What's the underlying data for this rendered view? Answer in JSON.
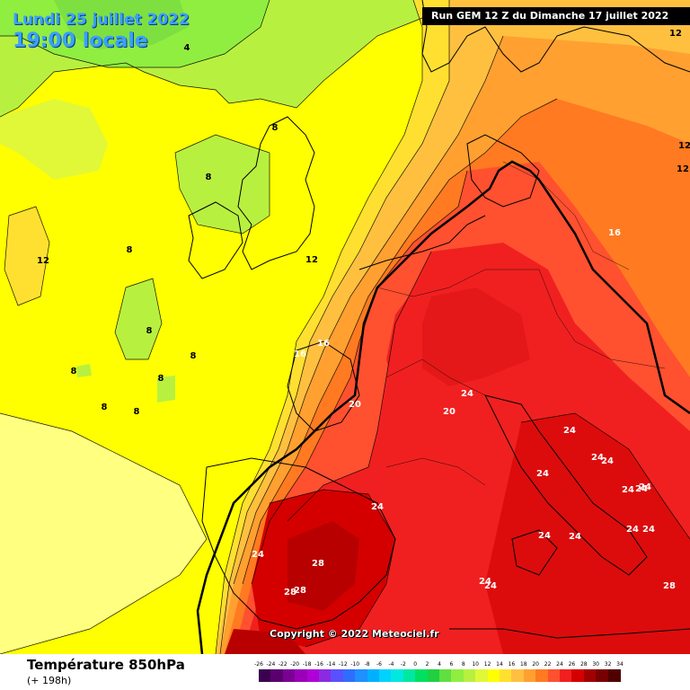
{
  "header": {
    "date": "Lundi 25 juillet 2022",
    "time": "19:00 locale",
    "run": "Run GEM 12 Z du Dimanche 17 juillet 2022"
  },
  "map": {
    "copyright": "Copyright © 2022 Meteociel.fr",
    "contour_labels": [
      "4",
      "12",
      "12",
      "12",
      "8",
      "8",
      "8",
      "8",
      "8",
      "8",
      "8",
      "8",
      "8",
      "12",
      "12",
      "16",
      "16",
      "16",
      "20",
      "20",
      "24",
      "24",
      "24",
      "24",
      "24",
      "24",
      "24",
      "24",
      "24",
      "24",
      "24",
      "24",
      "24",
      "24",
      "24",
      "24",
      "28",
      "28",
      "28",
      "28"
    ]
  },
  "footer": {
    "variable": "Température 850hPa",
    "lead": "(+ 198h)"
  },
  "legend": {
    "values": [
      "-26",
      "-24",
      "-22",
      "-20",
      "-18",
      "-16",
      "-14",
      "-12",
      "-10",
      "-8",
      "-6",
      "-4",
      "-2",
      "0",
      "2",
      "4",
      "6",
      "8",
      "10",
      "12",
      "14",
      "16",
      "18",
      "20",
      "22",
      "24",
      "26",
      "28",
      "30",
      "32",
      "34"
    ],
    "colors": [
      "#3c0050",
      "#5a006e",
      "#7a0094",
      "#9a00b8",
      "#b000d8",
      "#8a2be2",
      "#5a50ff",
      "#2f6dff",
      "#1e90ff",
      "#00b0ff",
      "#00d2ff",
      "#00e8e0",
      "#00e8a0",
      "#00e060",
      "#20d040",
      "#60e040",
      "#90ee40",
      "#b8f040",
      "#e0f838",
      "#ffff00",
      "#ffe030",
      "#ffc040",
      "#ffa030",
      "#ff7a20",
      "#ff5030",
      "#f02020",
      "#d40000",
      "#a00000",
      "#780000",
      "#500000"
    ]
  }
}
